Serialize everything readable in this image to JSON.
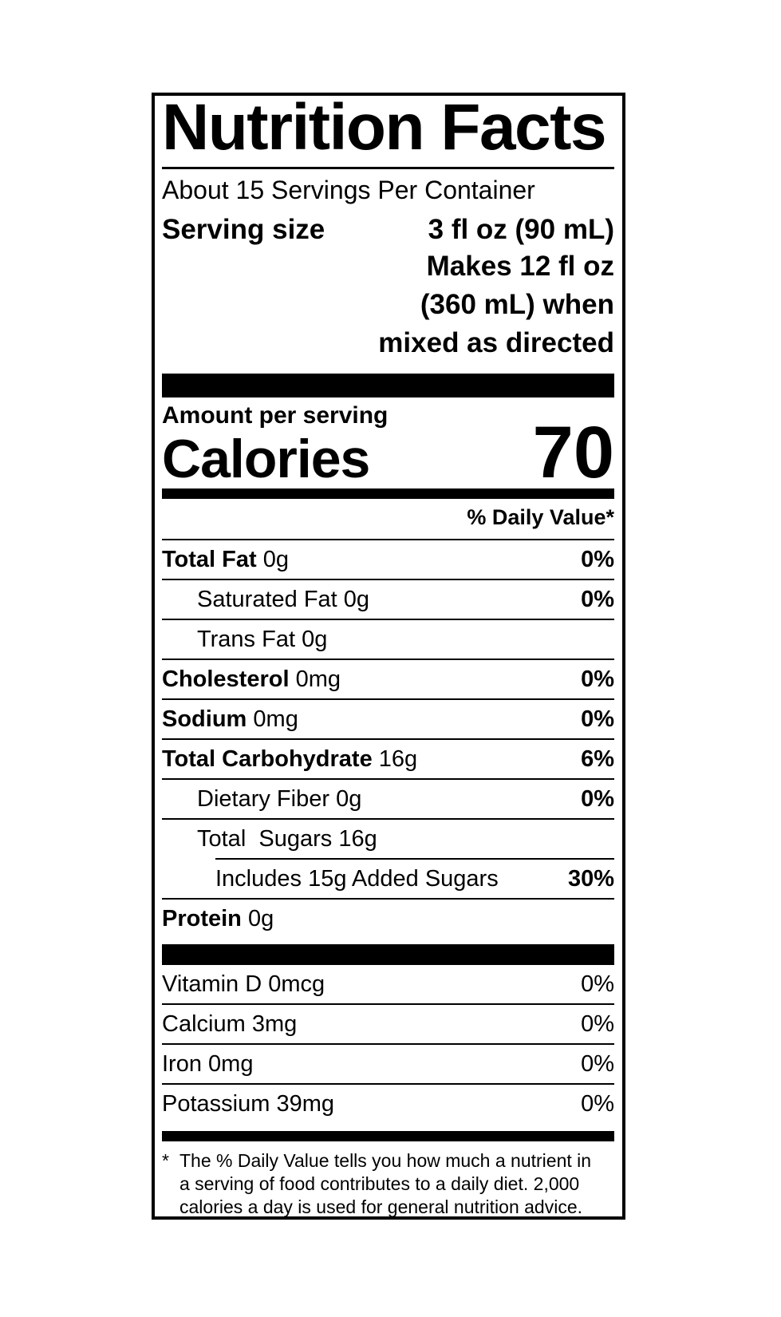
{
  "label": {
    "title": "Nutrition Facts",
    "servings_per_container": "About 15 Servings Per Container",
    "serving_size": {
      "label": "Serving size",
      "value": "3 fl oz (90 mL)"
    },
    "serving_note_lines": [
      "Makes 12 fl oz",
      "(360 mL) when",
      "mixed as directed"
    ],
    "amount_per_serving_label": "Amount per serving",
    "calories": {
      "label": "Calories",
      "value": "70"
    },
    "daily_value_header": "% Daily Value*",
    "nutrient_rows": [
      {
        "name": "Total Fat",
        "amount": "0g",
        "dv": "0%"
      },
      {
        "name": "Saturated Fat",
        "amount": "0g",
        "dv": "0%"
      },
      {
        "name": "Trans Fat",
        "amount": "0g",
        "dv": ""
      },
      {
        "name": "Cholesterol",
        "amount": "0mg",
        "dv": "0%"
      },
      {
        "name": "Sodium",
        "amount": "0mg",
        "dv": "0%"
      },
      {
        "name": "Total Carbohydrate",
        "amount": "16g",
        "dv": "6%"
      },
      {
        "name": "Dietary Fiber",
        "amount": "0g",
        "dv": "0%"
      },
      {
        "name": "Total  Sugars",
        "amount": "16g",
        "dv": ""
      },
      {
        "name": "Includes 15g Added Sugars",
        "amount": "",
        "dv": "30%"
      },
      {
        "name": "Protein",
        "amount": "0g",
        "dv": ""
      }
    ],
    "micronutrient_rows": [
      {
        "name": "Vitamin D",
        "amount": "0mcg",
        "dv": "0%"
      },
      {
        "name": "Calcium",
        "amount": "3mg",
        "dv": "0%"
      },
      {
        "name": "Iron",
        "amount": "0mg",
        "dv": "0%"
      },
      {
        "name": "Potassium",
        "amount": "39mg",
        "dv": "0%"
      }
    ],
    "footnote_marker": "*",
    "footnote_lines": [
      "The % Daily Value tells you how much a nutrient in",
      "a serving of food contributes to a daily diet. 2,000",
      "calories a day is used for general nutrition advice."
    ],
    "colors": {
      "ink": "#000000",
      "paper": "#ffffff"
    }
  }
}
